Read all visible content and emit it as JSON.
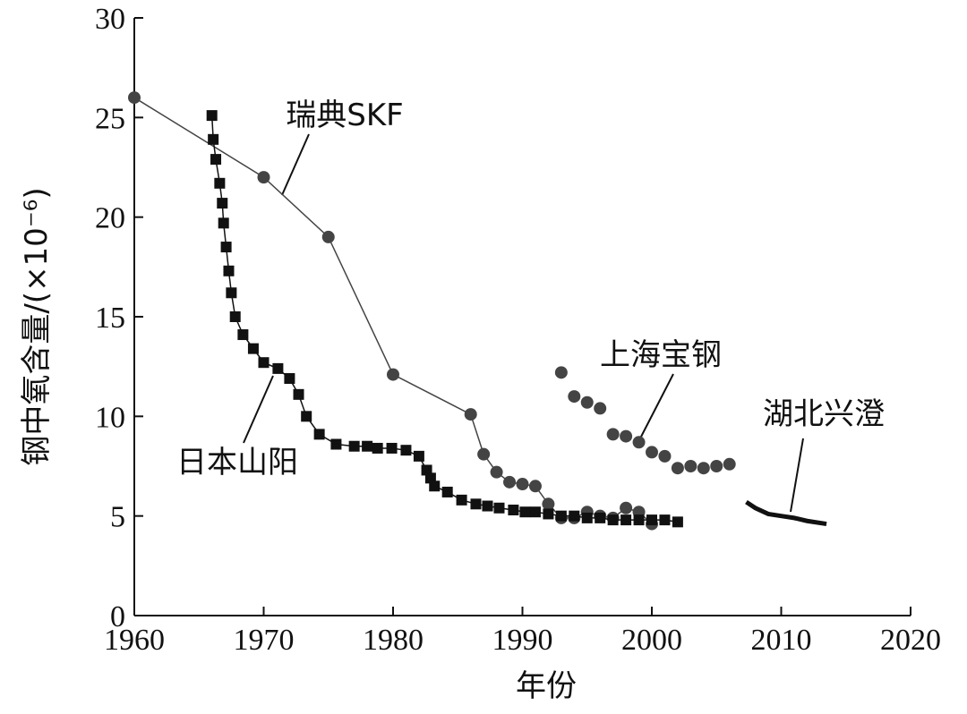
{
  "chart_data": {
    "type": "line",
    "x_label": "年份",
    "y_label": "钢中氧含量/(×10⁻⁶)",
    "xlim": [
      1960,
      2020
    ],
    "xticks": [
      1960,
      1970,
      1980,
      1990,
      2000,
      2010,
      2020
    ],
    "ylim": [
      0,
      30
    ],
    "yticks": [
      0,
      5,
      10,
      15,
      20,
      25,
      30
    ],
    "series": [
      {
        "name": "瑞典SKF",
        "color": "#444444",
        "marker": "circle",
        "connect": true,
        "x": [
          1960,
          1970,
          1975,
          1980,
          1986,
          1987,
          1988,
          1989,
          1990,
          1991,
          1992,
          1993,
          1994,
          1995,
          1996,
          1997,
          1998,
          1999,
          2000
        ],
        "values": [
          26,
          22,
          19,
          12.1,
          10.1,
          8.1,
          7.2,
          6.7,
          6.6,
          6.5,
          5.6,
          4.9,
          4.9,
          5.2,
          5.0,
          4.9,
          5.4,
          5.2,
          4.6
        ]
      },
      {
        "name": "日本山阳",
        "color": "#111111",
        "marker": "square",
        "connect": true,
        "x": [
          1966.0,
          1966.1,
          1966.3,
          1966.6,
          1966.8,
          1966.9,
          1967.1,
          1967.3,
          1967.5,
          1967.8,
          1968.4,
          1969.2,
          1970.0,
          1971.1,
          1972.0,
          1972.7,
          1973.3,
          1974.3,
          1975.6,
          1977.0,
          1978.0,
          1978.8,
          1979.9,
          1981.0,
          1982.0,
          1982.6,
          1982.9,
          1983.2,
          1984.2,
          1985.3,
          1986.4,
          1987.3,
          1988.2,
          1989.3,
          1990.2,
          1991.0,
          1992.0,
          1993,
          1994,
          1995,
          1996,
          1997,
          1998,
          1999,
          2000,
          2001,
          2002
        ],
        "values": [
          25.1,
          23.9,
          22.9,
          21.7,
          20.7,
          19.7,
          18.5,
          17.3,
          16.2,
          15.0,
          14.1,
          13.4,
          12.7,
          12.4,
          11.9,
          11.1,
          10.0,
          9.1,
          8.6,
          8.5,
          8.5,
          8.4,
          8.4,
          8.3,
          8.0,
          7.3,
          6.9,
          6.5,
          6.2,
          5.8,
          5.6,
          5.5,
          5.4,
          5.3,
          5.2,
          5.2,
          5.1,
          5.0,
          5.0,
          4.9,
          4.9,
          4.8,
          4.8,
          4.8,
          4.8,
          4.8,
          4.7
        ]
      },
      {
        "name": "上海宝钢",
        "color": "#444444",
        "marker": "circle",
        "connect": false,
        "x": [
          1993,
          1994,
          1995,
          1996,
          1997,
          1998,
          1999,
          2000,
          2001,
          2002,
          2003,
          2004,
          2005,
          2006
        ],
        "values": [
          12.2,
          11.0,
          10.7,
          10.4,
          9.1,
          9.0,
          8.7,
          8.2,
          8.0,
          7.4,
          7.5,
          7.4,
          7.5,
          7.6
        ]
      },
      {
        "name": "湖北兴澄",
        "color": "#111111",
        "marker": "none",
        "connect": true,
        "x": [
          2007.3,
          2008,
          2009,
          2010,
          2011,
          2012,
          2013.5
        ],
        "values": [
          5.7,
          5.4,
          5.1,
          5.0,
          4.9,
          4.75,
          4.6
        ]
      }
    ]
  }
}
